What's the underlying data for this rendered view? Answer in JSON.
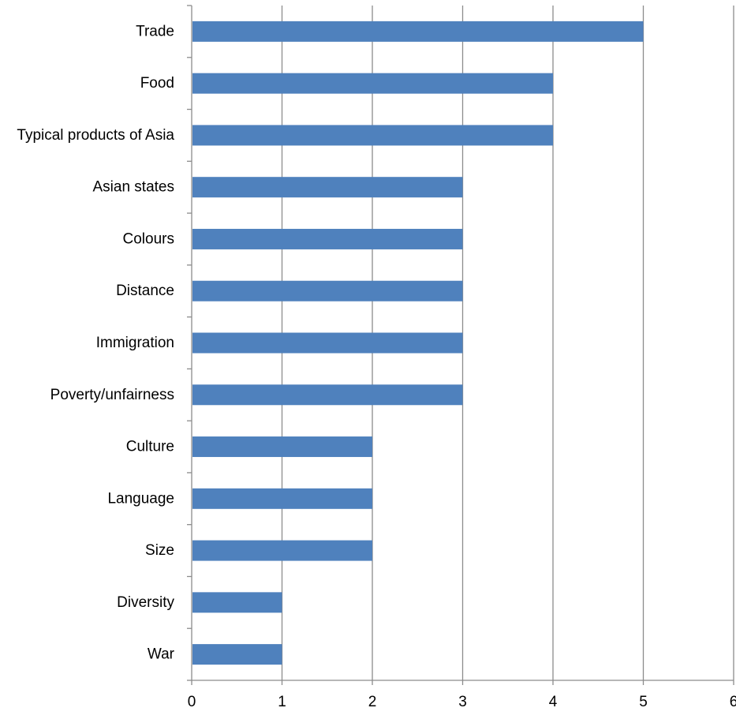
{
  "chart_data": {
    "type": "bar",
    "orientation": "horizontal",
    "title": "",
    "xlabel": "",
    "ylabel": "",
    "categories": [
      "Trade",
      "Food",
      "Typical products of Asia",
      "Asian states",
      "Colours",
      "Distance",
      "Immigration",
      "Poverty/unfairness",
      "Culture",
      "Language",
      "Size",
      "Diversity",
      "War"
    ],
    "values": [
      5,
      4,
      4,
      3,
      3,
      3,
      3,
      3,
      2,
      2,
      2,
      1,
      1
    ],
    "xlim": [
      0,
      6
    ],
    "x_ticks": [
      "0",
      "1",
      "2",
      "3",
      "4",
      "5",
      "6"
    ],
    "grid": "vertical",
    "legend": "none",
    "colors": {
      "bar": "#4f81bd",
      "grid": "#8c8c8c",
      "axis": "#8c8c8c",
      "text": "#000000"
    }
  }
}
